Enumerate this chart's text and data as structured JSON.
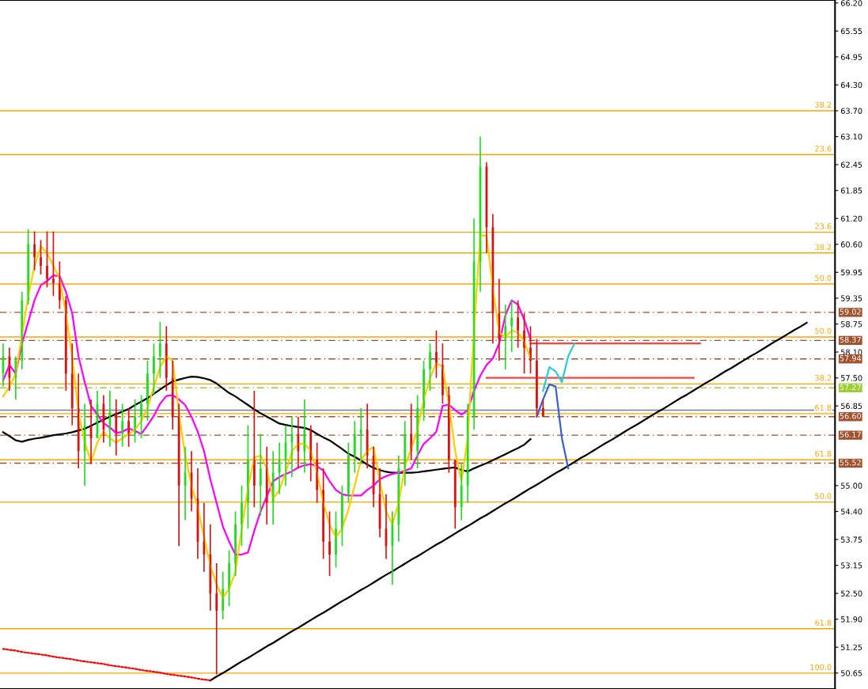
{
  "chart_data": {
    "type": "candlestick",
    "categories": [
      null,
      null,
      null,
      null,
      null,
      null,
      null,
      null,
      null,
      null,
      null,
      null,
      null,
      null,
      null,
      null,
      null,
      null,
      null,
      null,
      null,
      null,
      null,
      null,
      null,
      null,
      null,
      null,
      null,
      null,
      null,
      null,
      null,
      null,
      null,
      null,
      null,
      null,
      null,
      null,
      null,
      null,
      null,
      null,
      null,
      null,
      null,
      null,
      null,
      null,
      null,
      null,
      null,
      null,
      null,
      null,
      null,
      null,
      null,
      null,
      null,
      null,
      null,
      null,
      null,
      null,
      null,
      null,
      null,
      null,
      null,
      null,
      null,
      null,
      null,
      null,
      null,
      null,
      null,
      null,
      null,
      null,
      null,
      null,
      null,
      null,
      null,
      null,
      null,
      null,
      null,
      null,
      null,
      null,
      null,
      null,
      null,
      null,
      null,
      null,
      null,
      null,
      null,
      null,
      null,
      null,
      null,
      null,
      null,
      null,
      null,
      null,
      null,
      null,
      null,
      null,
      null,
      null,
      null,
      null,
      null,
      null,
      null,
      null,
      null,
      null,
      null,
      null,
      null
    ],
    "ylim": [
      50.28,
      66.27
    ],
    "yticks": [
      {
        "value": 66.2,
        "label": "66.20"
      },
      65.55,
      64.95,
      {
        "value": 64.3,
        "label": "64.30"
      },
      {
        "value": 63.7,
        "label": "63.70"
      },
      {
        "value": 63.1,
        "label": "63.10"
      },
      62.45,
      61.85,
      {
        "value": 61.2,
        "label": "61.20"
      },
      {
        "value": 60.6,
        "label": "60.60"
      },
      59.95,
      59.35,
      58.75,
      {
        "value": 58.1,
        "label": "58.10"
      },
      {
        "value": 57.5,
        "label": "57.50"
      },
      56.85,
      {
        "value": 55.0,
        "label": "55.00"
      },
      {
        "value": 54.4,
        "label": "54.40"
      },
      53.75,
      53.15,
      {
        "value": 52.5,
        "label": "52.50"
      },
      {
        "value": 51.9,
        "label": "51.90"
      },
      51.25,
      50.65
    ],
    "tick_labels": "y",
    "grid": false,
    "legend": false,
    "annotations": [
      {
        "text": "38.2",
        "y": 63.7
      },
      {
        "text": "23.6",
        "y": 62.68
      },
      {
        "text": "23.6",
        "y": 60.88
      },
      {
        "text": "38.2",
        "y": 60.4
      },
      {
        "text": "50.0",
        "y": 59.68
      },
      {
        "text": "50.0",
        "y": 58.45
      },
      {
        "text": "38.2",
        "y": 57.36
      },
      {
        "text": "61.8",
        "y": 56.67
      },
      {
        "text": "61.8",
        "y": 55.6
      },
      {
        "text": "50.0",
        "y": 54.62
      },
      {
        "text": "61.8",
        "y": 51.68
      },
      {
        "text": "100.0",
        "y": 50.65
      }
    ],
    "series": [
      {
        "ohlc": [
          [
            57.6,
            58.3,
            57.3,
            58.0
          ],
          [
            58.0,
            58.2,
            57.2,
            57.5
          ],
          [
            57.5,
            58.0,
            57.0,
            57.9
          ],
          [
            57.9,
            59.5,
            57.7,
            59.3
          ],
          [
            59.3,
            60.95,
            59.2,
            60.6
          ],
          [
            60.6,
            60.9,
            60.0,
            60.3
          ],
          [
            60.3,
            60.7,
            59.9,
            60.1
          ],
          [
            60.1,
            60.9,
            59.6,
            59.8
          ],
          [
            59.8,
            60.9,
            59.4,
            59.7
          ],
          [
            59.7,
            60.2,
            59.1,
            59.3
          ],
          [
            59.3,
            59.4,
            57.2,
            57.6
          ],
          [
            57.6,
            58.3,
            56.4,
            56.8
          ],
          [
            56.8,
            57.6,
            55.4,
            55.8
          ],
          [
            55.8,
            56.9,
            55.0,
            56.4
          ],
          [
            56.4,
            57.0,
            55.5,
            56.1
          ],
          [
            56.1,
            57.2,
            56.1,
            56.9
          ],
          [
            56.9,
            57.1,
            56.0,
            56.3
          ],
          [
            56.3,
            57.2,
            55.9,
            56.7
          ],
          [
            56.7,
            57.0,
            55.7,
            56.2
          ],
          [
            56.2,
            56.9,
            55.9,
            56.5
          ],
          [
            56.5,
            56.8,
            55.9,
            56.2
          ],
          [
            56.2,
            57.0,
            56.0,
            56.6
          ],
          [
            56.6,
            57.1,
            56.1,
            56.9
          ],
          [
            56.9,
            57.9,
            56.5,
            57.6
          ],
          [
            57.6,
            58.3,
            57.1,
            58.0
          ],
          [
            58.0,
            58.8,
            57.5,
            58.3
          ],
          [
            58.3,
            58.7,
            57.2,
            57.5
          ],
          [
            57.5,
            57.9,
            56.3,
            56.6
          ],
          [
            56.6,
            56.9,
            53.6,
            55.0
          ],
          [
            55.0,
            55.9,
            54.2,
            55.3
          ],
          [
            55.3,
            55.8,
            54.4,
            54.7
          ],
          [
            54.7,
            55.4,
            53.3,
            53.7
          ],
          [
            53.7,
            54.6,
            53.0,
            53.4
          ],
          [
            53.4,
            54.1,
            52.1,
            52.5
          ],
          [
            52.5,
            53.2,
            50.62,
            52.1
          ],
          [
            52.1,
            53.0,
            51.9,
            52.6
          ],
          [
            52.6,
            53.5,
            52.2,
            53.2
          ],
          [
            53.2,
            54.4,
            52.9,
            54.1
          ],
          [
            54.1,
            55.0,
            53.6,
            54.6
          ],
          [
            54.6,
            56.4,
            54.0,
            55.6
          ],
          [
            55.6,
            57.2,
            54.5,
            55.0
          ],
          [
            55.0,
            56.2,
            54.3,
            55.4
          ],
          [
            55.4,
            55.9,
            54.1,
            54.6
          ],
          [
            54.6,
            55.8,
            54.1,
            55.3
          ],
          [
            55.3,
            56.0,
            54.8,
            55.6
          ],
          [
            55.6,
            56.4,
            55.0,
            56.0
          ],
          [
            56.0,
            56.6,
            55.2,
            56.2
          ],
          [
            56.2,
            56.6,
            55.4,
            55.8
          ],
          [
            55.8,
            57.0,
            55.3,
            56.3
          ],
          [
            56.3,
            56.4,
            55.1,
            55.6
          ],
          [
            55.6,
            56.0,
            54.6,
            54.9
          ],
          [
            54.9,
            55.4,
            53.3,
            53.7
          ],
          [
            53.7,
            54.4,
            52.9,
            53.4
          ],
          [
            53.4,
            54.4,
            53.1,
            54.0
          ],
          [
            54.0,
            55.0,
            53.6,
            54.8
          ],
          [
            54.8,
            56.0,
            54.6,
            55.7
          ],
          [
            55.7,
            56.5,
            55.3,
            56.2
          ],
          [
            56.2,
            56.8,
            55.5,
            56.3
          ],
          [
            56.3,
            56.9,
            55.4,
            55.7
          ],
          [
            55.7,
            55.9,
            54.5,
            54.8
          ],
          [
            54.8,
            55.4,
            53.8,
            54.0
          ],
          [
            54.0,
            54.8,
            53.3,
            53.6
          ],
          [
            53.6,
            54.4,
            52.7,
            54.1
          ],
          [
            54.1,
            55.7,
            53.7,
            55.4
          ],
          [
            55.4,
            56.5,
            55.0,
            56.2
          ],
          [
            56.2,
            56.9,
            55.6,
            55.8
          ],
          [
            55.8,
            57.1,
            55.4,
            56.8
          ],
          [
            56.8,
            57.9,
            56.5,
            57.7
          ],
          [
            57.7,
            58.3,
            57.2,
            58.1
          ],
          [
            58.1,
            58.6,
            57.5,
            57.8
          ],
          [
            57.8,
            58.3,
            56.9,
            57.1
          ],
          [
            57.1,
            57.3,
            55.3,
            55.6
          ],
          [
            55.6,
            55.6,
            54.0,
            54.5
          ],
          [
            54.5,
            55.5,
            54.2,
            55.0
          ],
          [
            55.0,
            56.9,
            54.6,
            56.6
          ],
          [
            56.6,
            61.2,
            56.3,
            60.2
          ],
          [
            60.2,
            63.1,
            59.5,
            62.4
          ],
          [
            62.4,
            62.5,
            60.4,
            61.0
          ],
          [
            61.0,
            61.3,
            58.3,
            59.0
          ],
          [
            59.0,
            59.8,
            57.9,
            58.4
          ],
          [
            58.4,
            59.2,
            57.7,
            58.7
          ],
          [
            58.7,
            59.3,
            58.1,
            58.9
          ],
          [
            58.9,
            59.3,
            58.2,
            58.6
          ],
          [
            58.6,
            59.0,
            57.6,
            58.2
          ],
          [
            58.2,
            58.7,
            57.6,
            57.9
          ],
          [
            57.9,
            58.4,
            56.6,
            56.8
          ],
          [
            56.8,
            57.0,
            56.6,
            56.6
          ],
          null,
          null,
          null,
          null,
          null,
          null,
          null,
          null,
          null,
          null,
          null,
          null,
          null,
          null,
          null,
          null,
          null,
          null,
          null,
          null,
          null,
          null,
          null,
          null,
          null,
          null,
          null,
          null,
          null,
          null,
          null,
          null,
          null,
          null,
          null,
          null,
          null,
          null,
          null,
          null,
          null,
          null
        ],
        "colors": [
          "#22dd22",
          "#e01010",
          "#22dd22",
          "#22dd22",
          "#22dd22",
          "#e01010",
          "#e01010",
          "#e01010",
          "#e01010",
          "#e01010",
          "#e01010",
          "#e01010",
          "#e01010",
          "#22dd22",
          "#e01010",
          "#22dd22",
          "#e01010",
          "#22dd22",
          "#e01010",
          "#22dd22",
          "#e01010",
          "#22dd22",
          "#22dd22",
          "#22dd22",
          "#22dd22",
          "#22dd22",
          "#e01010",
          "#e01010",
          "#e01010",
          "#22dd22",
          "#e01010",
          "#e01010",
          "#e01010",
          "#e01010",
          "#e01010",
          "#22dd22",
          "#22dd22",
          "#22dd22",
          "#22dd22",
          "#22dd22",
          "#e01010",
          "#22dd22",
          "#e01010",
          "#22dd22",
          "#22dd22",
          "#22dd22",
          "#22dd22",
          "#e01010",
          "#22dd22",
          "#e01010",
          "#e01010",
          "#e01010",
          "#e01010",
          "#22dd22",
          "#22dd22",
          "#22dd22",
          "#22dd22",
          "#22dd22",
          "#e01010",
          "#e01010",
          "#e01010",
          "#e01010",
          "#22dd22",
          "#22dd22",
          "#22dd22",
          "#e01010",
          "#22dd22",
          "#22dd22",
          "#22dd22",
          "#e01010",
          "#e01010",
          "#e01010",
          "#e01010",
          "#22dd22",
          "#22dd22",
          "#22dd22",
          "#22dd22",
          "#e01010",
          "#e01010",
          "#e01010",
          "#22dd22",
          "#22dd22",
          "#e01010",
          "#e01010",
          "#e01010",
          "#e01010",
          "#e01010",
          null,
          null,
          null,
          null,
          null,
          null,
          null,
          null,
          null,
          null,
          null,
          null,
          null,
          null,
          null,
          null,
          null,
          null,
          null,
          null,
          null,
          null,
          null,
          null,
          null,
          null,
          null,
          null,
          null,
          null,
          null,
          null,
          null,
          null,
          null,
          null,
          null,
          null,
          null,
          null,
          null,
          null
        ]
      },
      {
        "type": "line",
        "color": "#000000",
        "values": [
          56.24,
          56.15,
          56.05,
          56.02,
          56.06,
          56.09,
          56.11,
          56.14,
          56.17,
          56.19,
          56.21,
          56.24,
          56.28,
          56.32,
          56.39,
          56.46,
          56.53,
          56.6,
          56.66,
          56.72,
          56.78,
          56.87,
          56.95,
          57.03,
          57.13,
          57.23,
          57.33,
          57.42,
          57.46,
          57.5,
          57.53,
          57.52,
          57.49,
          57.45,
          57.37,
          57.26,
          57.15,
          57.07,
          56.97,
          56.87,
          56.77,
          56.68,
          56.6,
          56.52,
          56.44,
          56.41,
          56.38,
          56.36,
          56.34,
          56.29,
          56.2,
          56.12,
          56.05,
          55.95,
          55.85,
          55.74,
          55.67,
          55.58,
          55.49,
          55.41,
          55.36,
          55.32,
          55.3,
          55.3,
          55.3,
          55.3,
          55.31,
          55.33,
          55.35,
          55.37,
          55.39,
          55.41,
          55.42,
          55.36,
          55.33,
          55.4,
          55.46,
          55.52,
          55.59,
          55.66,
          55.73,
          55.8,
          55.87,
          55.95,
          56.08,
          null,
          null,
          null,
          null,
          null,
          null,
          null,
          null,
          null,
          null,
          null,
          null,
          null,
          null,
          null,
          null,
          null,
          null,
          null,
          null,
          null,
          null,
          null,
          null,
          null,
          null,
          null,
          null,
          null,
          null,
          null,
          null,
          null,
          null,
          null,
          null,
          null,
          null,
          null,
          null,
          null,
          null,
          null,
          null
        ]
      },
      {
        "type": "line",
        "color": "#ff00ff",
        "values": [
          57.44,
          57.8,
          57.6,
          58.3,
          58.8,
          59.3,
          59.65,
          59.75,
          59.88,
          59.86,
          59.5,
          59.0,
          58.0,
          57.4,
          56.85,
          56.65,
          56.45,
          56.35,
          56.22,
          56.25,
          56.33,
          56.27,
          56.2,
          56.4,
          56.62,
          56.9,
          57.08,
          57.1,
          57.0,
          56.87,
          56.6,
          56.25,
          55.8,
          55.15,
          54.6,
          54.05,
          53.7,
          53.4,
          53.4,
          53.45,
          53.95,
          54.4,
          54.75,
          55.1,
          55.2,
          55.27,
          55.33,
          55.42,
          55.47,
          55.5,
          55.45,
          55.35,
          55.1,
          54.9,
          54.8,
          54.77,
          54.77,
          54.77,
          54.9,
          55.0,
          55.15,
          55.22,
          55.27,
          55.3,
          55.35,
          55.4,
          55.7,
          55.97,
          56.1,
          56.25,
          56.85,
          56.88,
          56.75,
          56.65,
          56.75,
          57.2,
          57.55,
          57.8,
          57.95,
          58.3,
          58.95,
          59.3,
          59.2,
          58.85,
          58.4,
          null,
          null,
          null,
          null,
          null,
          null,
          null,
          null,
          null,
          null,
          null,
          null,
          null,
          null,
          null,
          null,
          null,
          null,
          null,
          null,
          null,
          null,
          null,
          null,
          null,
          null,
          null,
          null,
          null,
          null,
          null,
          null,
          null,
          null,
          null,
          null,
          null,
          null,
          null,
          null,
          null,
          null,
          null,
          null
        ]
      },
      {
        "type": "line",
        "color": "#ffcc00",
        "values": [
          57.07,
          57.3,
          57.6,
          58.5,
          59.4,
          60.1,
          60.55,
          60.4,
          60.1,
          59.8,
          59.0,
          58.0,
          56.7,
          56.0,
          55.55,
          56.0,
          56.25,
          56.1,
          56.0,
          56.1,
          56.2,
          56.3,
          56.5,
          56.8,
          57.3,
          57.75,
          58.0,
          57.9,
          56.7,
          55.7,
          55.0,
          54.5,
          53.8,
          53.15,
          52.7,
          52.4,
          52.6,
          53.0,
          54.0,
          54.95,
          55.65,
          55.7,
          55.4,
          54.7,
          54.9,
          55.3,
          55.8,
          55.97,
          55.97,
          55.8,
          55.3,
          54.6,
          54.1,
          53.8,
          54.0,
          54.45,
          55.0,
          55.6,
          55.8,
          55.9,
          55.1,
          54.4,
          54.1,
          54.6,
          55.45,
          55.85,
          56.3,
          57.0,
          57.5,
          57.85,
          57.75,
          56.9,
          55.8,
          55.1,
          56.1,
          58.6,
          60.8,
          60.8,
          59.6,
          58.55,
          58.45,
          58.6,
          58.55,
          58.35,
          57.95,
          null,
          null,
          null,
          null,
          null,
          null,
          null,
          null,
          null,
          null,
          null,
          null,
          null,
          null,
          null,
          null,
          null,
          null,
          null,
          null,
          null,
          null,
          null,
          null,
          null,
          null,
          null,
          null,
          null,
          null,
          null,
          null,
          null,
          null,
          null,
          null,
          null,
          null,
          null,
          null,
          null,
          null,
          null,
          null
        ]
      },
      {
        "type": "line",
        "color": "#000000",
        "values": [
          null,
          null,
          null,
          null,
          null,
          null,
          null,
          null,
          null,
          null,
          null,
          null,
          null,
          null,
          null,
          null,
          null,
          null,
          null,
          null,
          null,
          null,
          null,
          null,
          null,
          null,
          null,
          null,
          null,
          null,
          null,
          null,
          null,
          50.48,
          50.57,
          50.65,
          50.74,
          50.83,
          50.92,
          51.0,
          51.09,
          51.18,
          51.27,
          51.35,
          51.44,
          51.53,
          51.62,
          51.7,
          51.79,
          51.88,
          51.97,
          52.05,
          52.14,
          52.23,
          52.32,
          52.4,
          52.49,
          52.58,
          52.66,
          52.75,
          52.84,
          52.93,
          53.01,
          53.1,
          53.19,
          53.28,
          53.36,
          53.45,
          53.54,
          53.63,
          53.71,
          53.8,
          53.89,
          53.98,
          54.06,
          54.15,
          54.24,
          54.32,
          54.41,
          54.5,
          54.59,
          54.67,
          54.76,
          54.85,
          54.94,
          55.02,
          55.11,
          55.2,
          55.29,
          55.37,
          55.46,
          55.55,
          55.64,
          55.72,
          55.81,
          55.9,
          55.99,
          56.07,
          56.16,
          56.25,
          56.34,
          56.42,
          56.51,
          56.6,
          56.69,
          56.77,
          56.86,
          56.95,
          57.04,
          57.12,
          57.21,
          57.3,
          57.39,
          57.47,
          57.56,
          57.65,
          57.73,
          57.82,
          57.91,
          58.0,
          58.08,
          58.17,
          58.26,
          58.35,
          58.43,
          58.52,
          58.61,
          58.69,
          58.78
        ]
      },
      {
        "type": "line",
        "color": "#ff0000",
        "line_style": "dotted",
        "values": [
          51.21,
          51.19,
          51.17,
          51.14,
          51.12,
          51.1,
          51.08,
          51.06,
          51.03,
          51.01,
          50.99,
          50.97,
          50.94,
          50.92,
          50.9,
          50.88,
          50.86,
          50.83,
          50.81,
          50.79,
          50.77,
          50.75,
          50.72,
          50.7,
          50.68,
          50.66,
          50.63,
          50.61,
          50.59,
          50.57,
          50.55,
          50.52,
          50.5,
          50.48,
          null,
          null,
          null,
          null,
          null,
          null,
          null,
          null,
          null,
          null,
          null,
          null,
          null,
          null,
          null,
          null,
          null,
          null,
          null,
          null,
          null,
          null,
          null,
          null,
          null,
          null,
          null,
          null,
          null,
          null,
          null,
          null,
          null,
          null,
          null,
          null,
          null,
          null,
          null,
          null,
          null,
          null,
          null,
          null,
          null,
          null,
          null,
          null,
          null,
          null,
          null,
          null,
          null,
          null,
          null,
          null,
          null,
          null,
          null,
          null,
          null,
          null,
          null,
          null,
          null,
          null,
          null,
          null,
          null,
          null,
          null,
          null,
          null,
          null,
          null,
          null,
          null,
          null,
          null,
          null,
          null,
          null,
          null,
          null,
          null,
          null,
          null,
          null,
          null,
          null,
          null,
          null,
          null,
          null,
          null
        ]
      },
      {
        "type": "line",
        "color": "#ff4040",
        "values": [
          null,
          null,
          null,
          null,
          null,
          null,
          null,
          null,
          null,
          null,
          null,
          null,
          null,
          null,
          null,
          null,
          null,
          null,
          null,
          null,
          null,
          null,
          null,
          null,
          null,
          null,
          null,
          null,
          null,
          null,
          null,
          null,
          null,
          null,
          null,
          null,
          null,
          null,
          null,
          null,
          null,
          null,
          null,
          null,
          null,
          null,
          null,
          null,
          null,
          null,
          null,
          null,
          null,
          null,
          null,
          null,
          null,
          null,
          null,
          null,
          null,
          null,
          null,
          null,
          null,
          null,
          null,
          null,
          null,
          null,
          null,
          null,
          null,
          null,
          null,
          null,
          null,
          null,
          null,
          null,
          null,
          null,
          null,
          null,
          58.3,
          58.3,
          58.3,
          58.3,
          58.3,
          58.3,
          58.3,
          58.3,
          58.3,
          58.3,
          58.3,
          58.3,
          58.3,
          58.3,
          58.3,
          58.3,
          58.3,
          58.3,
          58.3,
          58.3,
          58.3,
          58.3,
          58.3,
          58.3,
          58.3,
          58.3,
          58.3,
          58.3,
          null,
          null,
          null,
          null,
          null,
          null,
          null,
          null,
          null,
          null,
          null,
          null,
          null,
          null,
          null,
          null,
          null
        ]
      },
      {
        "type": "line",
        "color": "#ff4040",
        "values": [
          null,
          null,
          null,
          null,
          null,
          null,
          null,
          null,
          null,
          null,
          null,
          null,
          null,
          null,
          null,
          null,
          null,
          null,
          null,
          null,
          null,
          null,
          null,
          null,
          null,
          null,
          null,
          null,
          null,
          null,
          null,
          null,
          null,
          null,
          null,
          null,
          null,
          null,
          null,
          null,
          null,
          null,
          null,
          null,
          null,
          null,
          null,
          null,
          null,
          null,
          null,
          null,
          null,
          null,
          null,
          null,
          null,
          null,
          null,
          null,
          null,
          null,
          null,
          null,
          null,
          null,
          null,
          null,
          null,
          null,
          null,
          null,
          null,
          null,
          null,
          null,
          null,
          57.5,
          57.5,
          57.5,
          57.5,
          57.5,
          57.5,
          57.5,
          57.5,
          57.5,
          57.5,
          57.5,
          57.5,
          57.5,
          57.5,
          57.5,
          57.5,
          57.5,
          57.5,
          57.5,
          57.5,
          57.5,
          57.5,
          57.5,
          57.5,
          57.5,
          57.5,
          57.5,
          57.5,
          57.5,
          57.5,
          57.5,
          57.5,
          57.5,
          57.5,
          null,
          null,
          null,
          null,
          null,
          null,
          null,
          null,
          null,
          null,
          null,
          null,
          null,
          null,
          null,
          null,
          null,
          null
        ]
      },
      {
        "type": "line",
        "color": "#20d0d8",
        "values": [
          null,
          null,
          null,
          null,
          null,
          null,
          null,
          null,
          null,
          null,
          null,
          null,
          null,
          null,
          null,
          null,
          null,
          null,
          null,
          null,
          null,
          null,
          null,
          null,
          null,
          null,
          null,
          null,
          null,
          null,
          null,
          null,
          null,
          null,
          null,
          null,
          null,
          null,
          null,
          null,
          null,
          null,
          null,
          null,
          null,
          null,
          null,
          null,
          null,
          null,
          null,
          null,
          null,
          null,
          null,
          null,
          null,
          null,
          null,
          null,
          null,
          null,
          null,
          null,
          null,
          null,
          null,
          null,
          null,
          null,
          null,
          null,
          null,
          null,
          null,
          null,
          null,
          null,
          null,
          null,
          null,
          null,
          null,
          null,
          null,
          null,
          57.2,
          57.75,
          57.65,
          57.4,
          58.0,
          58.3,
          null,
          null,
          null,
          null,
          null,
          null,
          null,
          null,
          null,
          null,
          null,
          null,
          null,
          null,
          null,
          null,
          null,
          null,
          null,
          null,
          null,
          null,
          null,
          null,
          null,
          null,
          null,
          null,
          null,
          null,
          null,
          null,
          null,
          null,
          null,
          null,
          null
        ]
      },
      {
        "type": "line",
        "color": "#3a5fd9",
        "values": [
          null,
          null,
          null,
          null,
          null,
          null,
          null,
          null,
          null,
          null,
          null,
          null,
          null,
          null,
          null,
          null,
          null,
          null,
          null,
          null,
          null,
          null,
          null,
          null,
          null,
          null,
          null,
          null,
          null,
          null,
          null,
          null,
          null,
          null,
          null,
          null,
          null,
          null,
          null,
          null,
          null,
          null,
          null,
          null,
          null,
          null,
          null,
          null,
          null,
          null,
          null,
          null,
          null,
          null,
          null,
          null,
          null,
          null,
          null,
          null,
          null,
          null,
          null,
          null,
          null,
          null,
          null,
          null,
          null,
          null,
          null,
          null,
          null,
          null,
          null,
          null,
          null,
          null,
          null,
          null,
          null,
          null,
          null,
          null,
          null,
          56.6,
          57.0,
          57.35,
          57.3,
          56.1,
          55.4,
          null,
          null,
          null,
          null,
          null,
          null,
          null,
          null,
          null,
          null,
          null,
          null,
          null,
          null,
          null,
          null,
          null,
          null,
          null,
          null,
          null,
          null,
          null,
          null,
          null,
          null,
          null,
          null,
          null,
          null,
          null,
          null,
          null,
          null,
          null,
          null,
          null,
          null
        ]
      }
    ],
    "ref_lines": [
      {
        "axis": "y",
        "value": 63.7,
        "color": "#ffa500",
        "line_style": "solid"
      },
      {
        "axis": "y",
        "value": 62.68,
        "color": "#ffa500",
        "line_style": "solid"
      },
      {
        "axis": "y",
        "value": 60.88,
        "color": "#ffa500",
        "line_style": "solid"
      },
      {
        "axis": "y",
        "value": 60.4,
        "color": "#ffa500",
        "line_style": "solid"
      },
      {
        "axis": "y",
        "value": 59.68,
        "color": "#ffa500",
        "line_style": "solid"
      },
      {
        "axis": "y",
        "value": 58.45,
        "color": "#ffa500",
        "line_style": "solid"
      },
      {
        "axis": "y",
        "value": 57.36,
        "color": "#ffa500",
        "line_style": "solid"
      },
      {
        "axis": "y",
        "value": 56.67,
        "color": "#ffa500",
        "line_style": "solid"
      },
      {
        "axis": "y",
        "value": 55.6,
        "color": "#ffa500",
        "line_style": "solid"
      },
      {
        "axis": "y",
        "value": 54.62,
        "color": "#ffa500",
        "line_style": "solid"
      },
      {
        "axis": "y",
        "value": 51.68,
        "color": "#ffa500",
        "line_style": "solid"
      },
      {
        "axis": "y",
        "value": 50.65,
        "color": "#ffa500",
        "line_style": "solid"
      },
      {
        "axis": "y",
        "value": 56.75,
        "color": "#708090",
        "line_style": "solid"
      },
      {
        "axis": "y",
        "value": 59.02,
        "label": "59.02",
        "color": "#a0522d",
        "line_style": "dashed"
      },
      {
        "axis": "y",
        "value": 58.37,
        "label": "58.37",
        "color": "#a0522d",
        "line_style": "dashed"
      },
      {
        "axis": "y",
        "value": 57.94,
        "label": "57.94",
        "color": "#a0522d",
        "line_style": "dashed"
      },
      {
        "axis": "y",
        "value": 57.27,
        "label": "57.27",
        "color": "#9acd32",
        "line_style": "dashed"
      },
      {
        "axis": "y",
        "value": 56.6,
        "label": "56.60",
        "color": "#a0522d",
        "line_style": "dashed"
      },
      {
        "axis": "y",
        "value": 56.17,
        "label": "56.17",
        "color": "#a0522d",
        "line_style": "dashed"
      },
      {
        "axis": "y",
        "value": 55.52,
        "label": "55.52",
        "color": "#a0522d",
        "line_style": "dashed"
      }
    ]
  }
}
